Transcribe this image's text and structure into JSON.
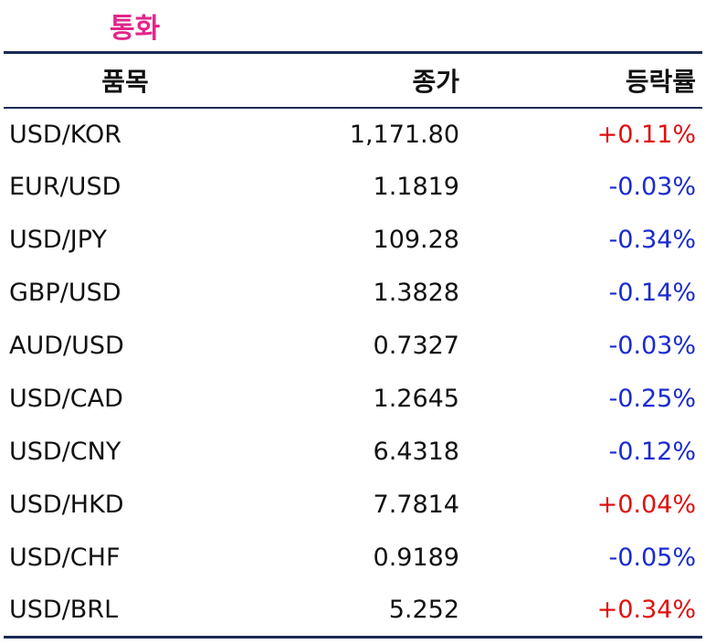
{
  "title": "통화",
  "table": {
    "header": [
      "품목",
      "종가",
      "등락률"
    ],
    "rows": [
      [
        "USD/KOR",
        "1,171.80",
        "+0.11%"
      ],
      [
        "EUR/USD",
        "1.1819",
        "-0.03%"
      ],
      [
        "USD/JPY",
        "109.28",
        "-0.34%"
      ],
      [
        "GBP/USD",
        "1.3828",
        "-0.14%"
      ],
      [
        "AUD/USD",
        "0.7327",
        "-0.03%"
      ],
      [
        "USD/CAD",
        "1.2645",
        "-0.25%"
      ],
      [
        "USD/CNY",
        "6.4318",
        "-0.12%"
      ],
      [
        "USD/HKD",
        "7.7814",
        "+0.04%"
      ],
      [
        "USD/CHF",
        "0.9189",
        "-0.05%"
      ],
      [
        "USD/BRL",
        "5.252",
        "+0.34%"
      ]
    ]
  }
}
